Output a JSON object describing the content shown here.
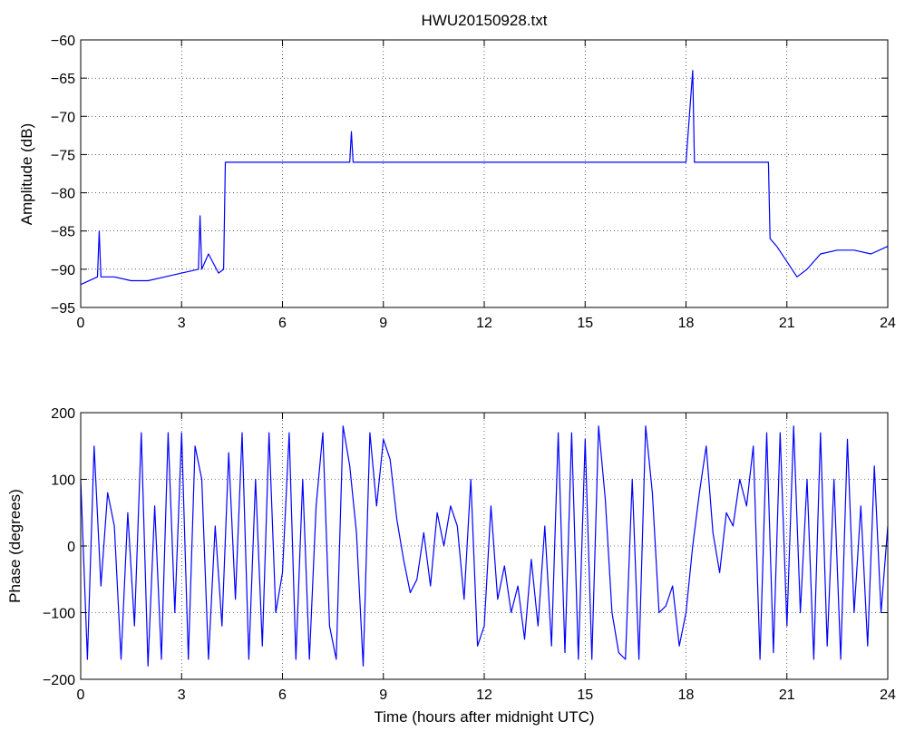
{
  "chart_data": [
    {
      "type": "line",
      "title": "HWU20150928.txt",
      "xlabel": "",
      "ylabel": "Amplitude (dB)",
      "xlim": [
        0,
        24
      ],
      "ylim": [
        -95,
        -60
      ],
      "xticks": [
        0,
        3,
        6,
        9,
        12,
        15,
        18,
        21,
        24
      ],
      "yticks": [
        -60,
        -65,
        -70,
        -75,
        -80,
        -85,
        -90,
        -95
      ],
      "xtick_labels": [
        "0",
        "3",
        "6",
        "9",
        "12",
        "15",
        "18",
        "21",
        "24"
      ],
      "ytick_labels": [
        "−60",
        "−65",
        "−70",
        "−75",
        "−80",
        "−85",
        "−90",
        "−95"
      ],
      "grid": true,
      "series": [
        {
          "color": "#0000ff",
          "x": [
            0,
            0.5,
            0.55,
            0.6,
            1,
            1.5,
            2,
            2.5,
            3,
            3.5,
            3.55,
            3.6,
            3.8,
            4.1,
            4.25,
            4.3,
            5,
            6,
            7,
            8,
            8.05,
            8.1,
            9,
            10,
            11,
            12,
            13,
            14,
            15,
            16,
            17,
            18,
            18.2,
            18.25,
            18.3,
            19,
            20,
            20.45,
            20.5,
            20.7,
            21,
            21.3,
            21.6,
            22,
            22.5,
            23,
            23.5,
            24
          ],
          "y": [
            -92,
            -91,
            -85,
            -91,
            -91,
            -91.5,
            -91.5,
            -91,
            -90.5,
            -90,
            -83,
            -90,
            -88,
            -90.5,
            -90,
            -76,
            -76,
            -76,
            -76,
            -76,
            -72,
            -76,
            -76,
            -76,
            -76,
            -76,
            -76,
            -76,
            -76,
            -76,
            -76,
            -76,
            -64,
            -76,
            -76,
            -76,
            -76,
            -76,
            -86,
            -87,
            -89,
            -91,
            -90,
            -88,
            -87.5,
            -87.5,
            -88,
            -87
          ]
        }
      ]
    },
    {
      "type": "line",
      "title": "",
      "xlabel": "Time (hours after midnight UTC)",
      "ylabel": "Phase (degrees)",
      "xlim": [
        0,
        24
      ],
      "ylim": [
        -200,
        200
      ],
      "xticks": [
        0,
        3,
        6,
        9,
        12,
        15,
        18,
        21,
        24
      ],
      "yticks": [
        200,
        100,
        0,
        -100,
        -200
      ],
      "xtick_labels": [
        "0",
        "3",
        "6",
        "9",
        "12",
        "15",
        "18",
        "21",
        "24"
      ],
      "ytick_labels": [
        "200",
        "100",
        "0",
        "−100",
        "−200"
      ],
      "grid": true,
      "series": [
        {
          "color": "#0000ff",
          "x": [
            0,
            0.2,
            0.4,
            0.6,
            0.8,
            1,
            1.2,
            1.4,
            1.6,
            1.8,
            2,
            2.2,
            2.4,
            2.6,
            2.8,
            3,
            3.2,
            3.4,
            3.6,
            3.8,
            4,
            4.2,
            4.4,
            4.6,
            4.8,
            5,
            5.2,
            5.4,
            5.6,
            5.8,
            6,
            6.2,
            6.4,
            6.6,
            6.8,
            7,
            7.2,
            7.4,
            7.6,
            7.8,
            8,
            8.2,
            8.4,
            8.6,
            8.8,
            9,
            9.2,
            9.4,
            9.6,
            9.8,
            10,
            10.2,
            10.4,
            10.6,
            10.8,
            11,
            11.2,
            11.4,
            11.6,
            11.8,
            12,
            12.2,
            12.4,
            12.6,
            12.8,
            13,
            13.2,
            13.4,
            13.6,
            13.8,
            14,
            14.2,
            14.4,
            14.6,
            14.8,
            15,
            15.2,
            15.4,
            15.6,
            15.8,
            16,
            16.2,
            16.4,
            16.6,
            16.8,
            17,
            17.2,
            17.4,
            17.6,
            17.8,
            18,
            18.2,
            18.4,
            18.6,
            18.8,
            19,
            19.2,
            19.4,
            19.6,
            19.8,
            20,
            20.2,
            20.4,
            20.6,
            20.8,
            21,
            21.2,
            21.4,
            21.6,
            21.8,
            22,
            22.2,
            22.4,
            22.6,
            22.8,
            23,
            23.2,
            23.4,
            23.6,
            23.8,
            24
          ],
          "y": [
            100,
            -170,
            150,
            -60,
            80,
            30,
            -170,
            50,
            -120,
            170,
            -180,
            60,
            -170,
            170,
            -100,
            170,
            -170,
            150,
            100,
            -170,
            30,
            -120,
            140,
            -80,
            170,
            -170,
            100,
            -150,
            170,
            -100,
            -40,
            170,
            -170,
            100,
            -170,
            60,
            170,
            -120,
            -170,
            180,
            120,
            20,
            -180,
            170,
            60,
            160,
            130,
            40,
            -20,
            -70,
            -50,
            20,
            -60,
            50,
            0,
            60,
            30,
            -80,
            100,
            -150,
            -120,
            60,
            -80,
            -30,
            -100,
            -60,
            -140,
            -20,
            -120,
            30,
            -150,
            170,
            -160,
            170,
            -170,
            160,
            -170,
            180,
            70,
            -100,
            -160,
            -170,
            100,
            -170,
            180,
            80,
            -100,
            -90,
            -60,
            -150,
            -100,
            0,
            80,
            150,
            20,
            -40,
            50,
            30,
            100,
            60,
            150,
            -170,
            170,
            -160,
            170,
            -120,
            180,
            -100,
            100,
            -170,
            170,
            -150,
            100,
            -170,
            160,
            -100,
            60,
            -150,
            120,
            -100,
            30
          ]
        }
      ]
    }
  ]
}
